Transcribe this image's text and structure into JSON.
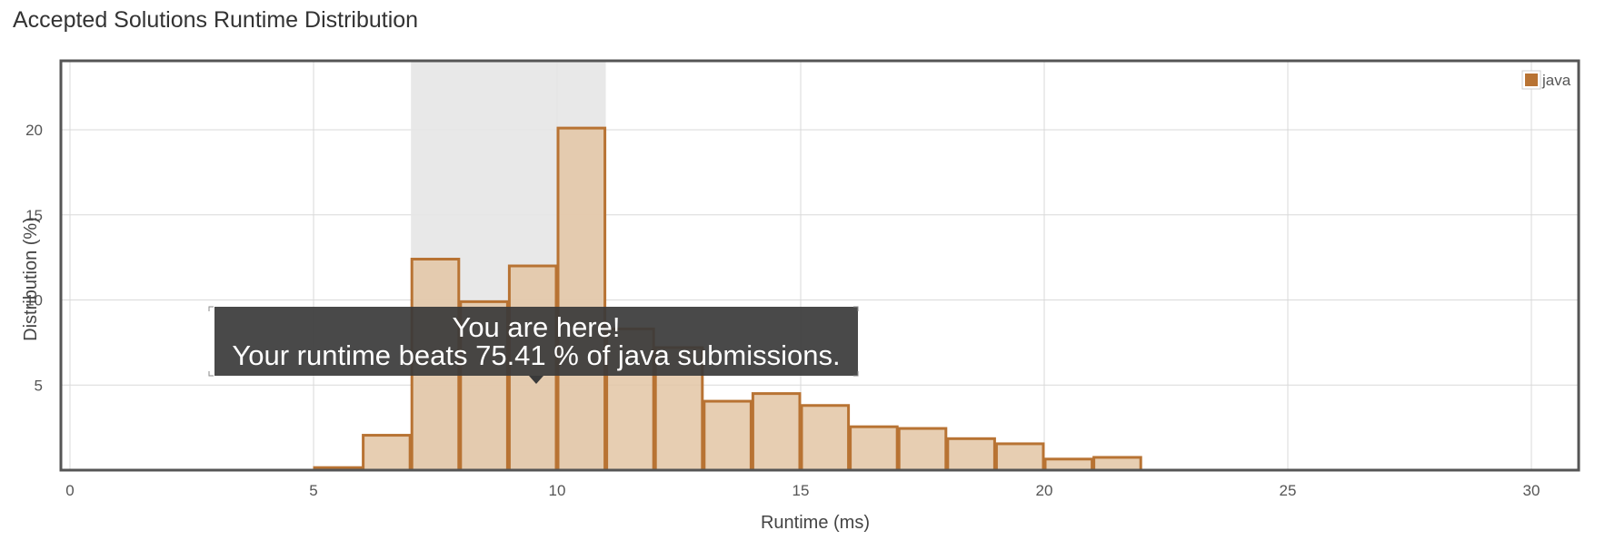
{
  "page": {
    "title": "Accepted Solutions Runtime Distribution"
  },
  "chart_data": {
    "type": "bar",
    "x_label": "Runtime (ms)",
    "y_label": "Distribution (%)",
    "xlim": [
      0,
      31
    ],
    "ylim": [
      0,
      24
    ],
    "x_ticks": [
      0,
      5,
      10,
      15,
      20,
      25,
      30
    ],
    "y_ticks": [
      5,
      10,
      15,
      20
    ],
    "grid": true,
    "legend_position": "top-right",
    "series": [
      {
        "name": "java",
        "color": "#b87333",
        "fill": "#e3c6a5",
        "bins": [
          {
            "x0": 5,
            "x1": 6,
            "y": 0.15
          },
          {
            "x0": 6,
            "x1": 7,
            "y": 2.05
          },
          {
            "x0": 7,
            "x1": 8,
            "y": 12.4
          },
          {
            "x0": 8,
            "x1": 9,
            "y": 9.9
          },
          {
            "x0": 9,
            "x1": 10,
            "y": 12.0
          },
          {
            "x0": 10,
            "x1": 11,
            "y": 20.1
          },
          {
            "x0": 11,
            "x1": 12,
            "y": 8.3
          },
          {
            "x0": 12,
            "x1": 13,
            "y": 7.2
          },
          {
            "x0": 13,
            "x1": 14,
            "y": 4.05
          },
          {
            "x0": 14,
            "x1": 15,
            "y": 4.5
          },
          {
            "x0": 15,
            "x1": 16,
            "y": 3.8
          },
          {
            "x0": 16,
            "x1": 17,
            "y": 2.55
          },
          {
            "x0": 17,
            "x1": 18,
            "y": 2.45
          },
          {
            "x0": 18,
            "x1": 19,
            "y": 1.85
          },
          {
            "x0": 19,
            "x1": 20,
            "y": 1.55
          },
          {
            "x0": 20,
            "x1": 21,
            "y": 0.65
          },
          {
            "x0": 21,
            "x1": 22,
            "y": 0.75
          }
        ]
      }
    ],
    "highlight_range": [
      7,
      11
    ],
    "highlight_color": "#e6e6e6",
    "tooltip": {
      "line1": "You are here!",
      "line2": "Your runtime beats 75.41 % of java submissions.",
      "background": "#3a3a3a"
    }
  }
}
